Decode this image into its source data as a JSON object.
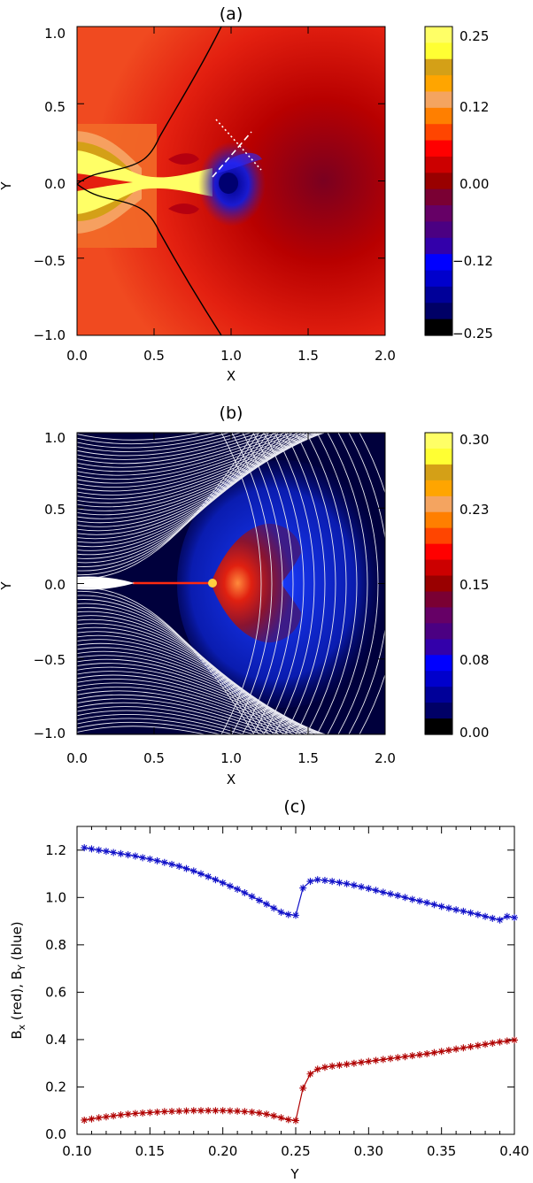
{
  "chart_data": [
    {
      "panel": "(a)",
      "type": "heatmap",
      "xlabel": "X",
      "ylabel": "Y",
      "xlim": [
        0.0,
        2.0
      ],
      "ylim": [
        -1.0,
        1.0
      ],
      "xticks": [
        "0.0",
        "0.5",
        "1.0",
        "1.5",
        "2.0"
      ],
      "yticks": [
        "1.0",
        "0.5",
        "0.0",
        "−0.5",
        "−1.0"
      ],
      "colorbar": {
        "range": [
          -0.25,
          0.25
        ],
        "tick_labels": [
          "0.25",
          "0.12",
          "0.00",
          "−0.12",
          "−0.25"
        ],
        "colors_top_to_bottom": [
          "#ffff66",
          "#ffff33",
          "#d4a017",
          "#ffa500",
          "#f4a460",
          "#ff7f00",
          "#ff4500",
          "#ff0000",
          "#cc0000",
          "#990000",
          "#7a0033",
          "#660066",
          "#4b0082",
          "#3300aa",
          "#0000ff",
          "#0000cc",
          "#000099",
          "#000066",
          "#000000"
        ]
      },
      "separatrix": [
        [
          0.0,
          0.0
        ],
        [
          0.05,
          0.1
        ],
        [
          0.25,
          0.18
        ],
        [
          0.4,
          0.45
        ],
        [
          0.55,
          0.75
        ],
        [
          0.62,
          1.0
        ],
        [
          1.07,
          1.0
        ]
      ],
      "cut_line": {
        "from": [
          0.9,
          0.42
        ],
        "to": [
          1.18,
          0.1
        ]
      },
      "shock_line": {
        "from": [
          0.88,
          0.05
        ],
        "to": [
          1.12,
          0.34
        ]
      }
    },
    {
      "panel": "(b)",
      "type": "heatmap",
      "xlabel": "X",
      "ylabel": "Y",
      "xlim": [
        0.0,
        2.0
      ],
      "ylim": [
        -1.0,
        1.0
      ],
      "xticks": [
        "0.0",
        "0.5",
        "1.0",
        "1.5",
        "2.0"
      ],
      "yticks": [
        "1.0",
        "0.5",
        "0.0",
        "−0.5",
        "−1.0"
      ],
      "colorbar": {
        "range": [
          0.0,
          0.3
        ],
        "tick_labels": [
          "0.30",
          "0.23",
          "0.15",
          "0.08",
          "0.00"
        ],
        "colors_top_to_bottom": [
          "#ffff66",
          "#ffff33",
          "#d4a017",
          "#ffa500",
          "#f4a460",
          "#ff7f00",
          "#ff4500",
          "#ff0000",
          "#cc0000",
          "#990000",
          "#7a0033",
          "#660066",
          "#4b0082",
          "#3300aa",
          "#0000ff",
          "#0000cc",
          "#000099",
          "#000066",
          "#000000"
        ]
      }
    },
    {
      "panel": "(c)",
      "type": "line",
      "xlabel": "Y",
      "ylabel": "B_x (red), B_Y (blue)",
      "xlim": [
        0.1,
        0.4
      ],
      "ylim": [
        0.0,
        1.3
      ],
      "xticks": [
        0.1,
        0.15,
        0.2,
        0.25,
        0.3,
        0.35,
        0.4
      ],
      "xtick_labels": [
        "0.10",
        "0.15",
        "0.20",
        "0.25",
        "0.30",
        "0.35",
        "0.40"
      ],
      "yticks": [
        0.0,
        0.2,
        0.4,
        0.6,
        0.8,
        1.0,
        1.2
      ],
      "ytick_labels": [
        "0.0",
        "0.2",
        "0.4",
        "0.6",
        "0.8",
        "1.0",
        "1.2"
      ],
      "series": [
        {
          "color": "#1010c8",
          "marker": "asterisk",
          "x": [
            0.105,
            0.11,
            0.115,
            0.12,
            0.125,
            0.13,
            0.135,
            0.14,
            0.145,
            0.15,
            0.155,
            0.16,
            0.165,
            0.17,
            0.175,
            0.18,
            0.185,
            0.19,
            0.195,
            0.2,
            0.205,
            0.21,
            0.215,
            0.22,
            0.225,
            0.23,
            0.235,
            0.24,
            0.245,
            0.25,
            0.255,
            0.26,
            0.265,
            0.27,
            0.275,
            0.28,
            0.285,
            0.29,
            0.295,
            0.3,
            0.305,
            0.31,
            0.315,
            0.32,
            0.325,
            0.33,
            0.335,
            0.34,
            0.345,
            0.35,
            0.355,
            0.36,
            0.365,
            0.37,
            0.375,
            0.38,
            0.385,
            0.39,
            0.395,
            0.4
          ],
          "y": [
            1.21,
            1.205,
            1.2,
            1.195,
            1.19,
            1.185,
            1.18,
            1.175,
            1.168,
            1.162,
            1.155,
            1.148,
            1.14,
            1.132,
            1.122,
            1.112,
            1.1,
            1.088,
            1.075,
            1.062,
            1.048,
            1.035,
            1.02,
            1.004,
            0.988,
            0.972,
            0.955,
            0.938,
            0.928,
            0.925,
            1.04,
            1.068,
            1.075,
            1.072,
            1.068,
            1.063,
            1.058,
            1.052,
            1.045,
            1.038,
            1.03,
            1.022,
            1.015,
            1.008,
            1.0,
            0.992,
            0.985,
            0.978,
            0.97,
            0.962,
            0.955,
            0.948,
            0.942,
            0.935,
            0.928,
            0.92,
            0.912,
            0.905,
            0.92,
            0.915
          ]
        },
        {
          "color": "#b00000",
          "marker": "asterisk",
          "x": [
            0.105,
            0.11,
            0.115,
            0.12,
            0.125,
            0.13,
            0.135,
            0.14,
            0.145,
            0.15,
            0.155,
            0.16,
            0.165,
            0.17,
            0.175,
            0.18,
            0.185,
            0.19,
            0.195,
            0.2,
            0.205,
            0.21,
            0.215,
            0.22,
            0.225,
            0.23,
            0.235,
            0.24,
            0.245,
            0.25,
            0.255,
            0.26,
            0.265,
            0.27,
            0.275,
            0.28,
            0.285,
            0.29,
            0.295,
            0.3,
            0.305,
            0.31,
            0.315,
            0.32,
            0.325,
            0.33,
            0.335,
            0.34,
            0.345,
            0.35,
            0.355,
            0.36,
            0.365,
            0.37,
            0.375,
            0.38,
            0.385,
            0.39,
            0.395,
            0.4
          ],
          "y": [
            0.06,
            0.065,
            0.07,
            0.074,
            0.078,
            0.082,
            0.085,
            0.088,
            0.09,
            0.092,
            0.094,
            0.096,
            0.097,
            0.098,
            0.099,
            0.1,
            0.1,
            0.1,
            0.1,
            0.1,
            0.099,
            0.098,
            0.096,
            0.094,
            0.09,
            0.085,
            0.078,
            0.07,
            0.062,
            0.058,
            0.195,
            0.255,
            0.275,
            0.283,
            0.288,
            0.292,
            0.296,
            0.3,
            0.304,
            0.308,
            0.312,
            0.316,
            0.32,
            0.324,
            0.328,
            0.332,
            0.336,
            0.34,
            0.345,
            0.35,
            0.355,
            0.36,
            0.365,
            0.37,
            0.375,
            0.38,
            0.385,
            0.39,
            0.394,
            0.398
          ]
        }
      ]
    }
  ]
}
